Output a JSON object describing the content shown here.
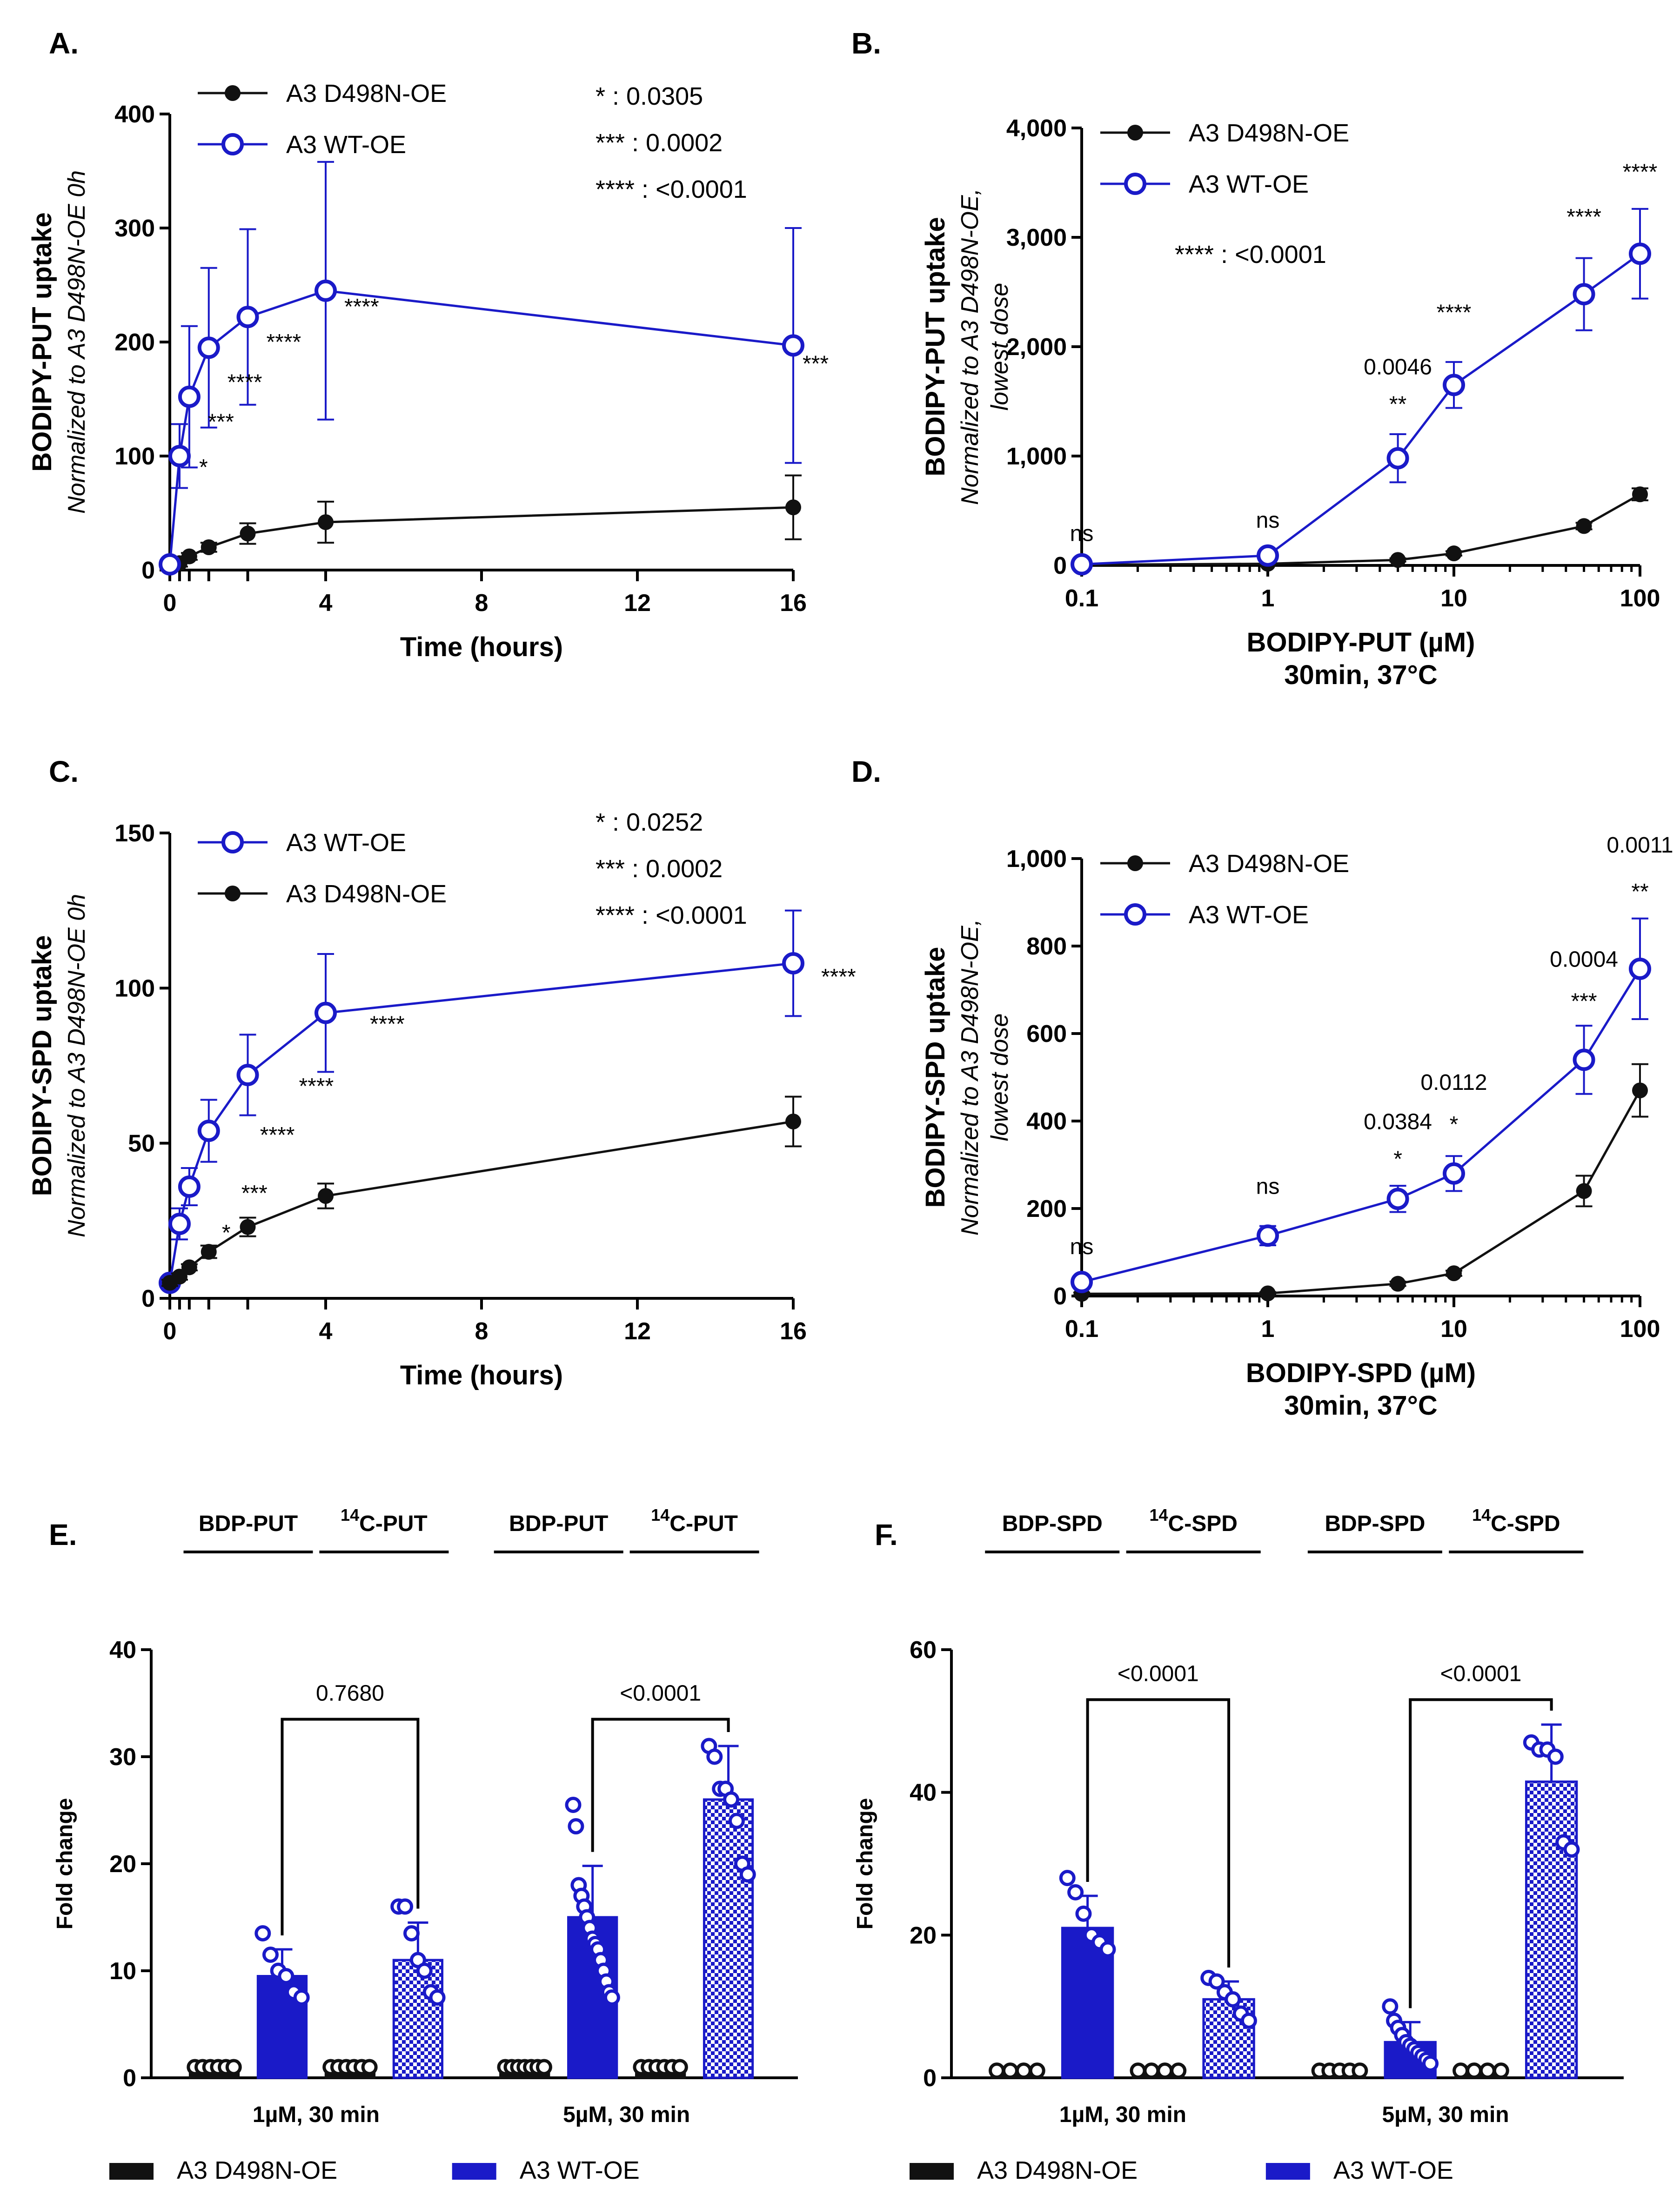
{
  "colors": {
    "wt": "#1a1ac8",
    "mut": "#111111",
    "axis": "#000000"
  },
  "chart_data": [
    {
      "id": "A",
      "label": "A.",
      "type": "line",
      "title": "",
      "xlabel": "Time (hours)",
      "ylabel": "BODIPY-PUT uptake",
      "ylabel_sub": "Normalized to A3 D498N-OE 0h",
      "xlim": [
        0,
        16
      ],
      "ylim": [
        0,
        400
      ],
      "xticks": [
        0,
        4,
        8,
        12,
        16
      ],
      "yticks": [
        0,
        100,
        200,
        300,
        400
      ],
      "minor_xticks": [
        0.25,
        0.5,
        1,
        2
      ],
      "legend": [
        "A3 D498N-OE",
        "A3 WT-OE"
      ],
      "stats": [
        "* : 0.0305",
        "*** : 0.0002",
        "**** : <0.0001"
      ],
      "series": [
        {
          "name": "A3 D498N-OE",
          "color": "mut",
          "marker": "filled",
          "x": [
            0,
            0.25,
            0.5,
            1,
            2,
            4,
            16
          ],
          "y": [
            3,
            6,
            12,
            20,
            32,
            42,
            55
          ],
          "err": [
            2,
            3,
            3,
            4,
            9,
            18,
            28
          ]
        },
        {
          "name": "A3 WT-OE",
          "color": "wt",
          "marker": "open",
          "x": [
            0,
            0.25,
            0.5,
            1,
            2,
            4,
            16
          ],
          "y": [
            5,
            100,
            152,
            195,
            222,
            245,
            197
          ],
          "err": [
            3,
            28,
            62,
            70,
            77,
            113,
            103
          ]
        }
      ],
      "annotations": [
        {
          "x": 0.25,
          "y": 100,
          "text": "*",
          "dx": 42,
          "dy": 40
        },
        {
          "x": 0.5,
          "y": 152,
          "text": "***",
          "dx": 40,
          "dy": 70
        },
        {
          "x": 1,
          "y": 195,
          "text": "****",
          "dx": 40,
          "dy": 90
        },
        {
          "x": 2,
          "y": 222,
          "text": "****",
          "dx": 40,
          "dy": 70
        },
        {
          "x": 4,
          "y": 245,
          "text": "****",
          "dx": 40,
          "dy": 50
        },
        {
          "x": 16,
          "y": 197,
          "text": "***",
          "dx": 20,
          "dy": 55
        }
      ]
    },
    {
      "id": "B",
      "label": "B.",
      "type": "line",
      "xlabel": "BODIPY-PUT (µM)",
      "xlabel2": "30min, 37°C",
      "ylabel": "BODIPY-PUT uptake",
      "ylabel_sub": "Normalized to A3 D498N-OE,",
      "ylabel_sub2": "lowest dose",
      "xscale": "log",
      "xlim": [
        0.1,
        100
      ],
      "ylim": [
        0,
        4000
      ],
      "xticks": [
        0.1,
        1,
        10,
        100
      ],
      "xtick_labels": [
        "0.1",
        "1",
        "10",
        "100"
      ],
      "yticks": [
        0,
        1000,
        2000,
        3000,
        4000
      ],
      "ytick_labels": [
        "0",
        "1,000",
        "2,000",
        "3,000",
        "4,000"
      ],
      "legend": [
        "A3 D498N-OE",
        "A3 WT-OE"
      ],
      "stats": [
        "**** : <0.0001"
      ],
      "series": [
        {
          "name": "A3 D498N-OE",
          "color": "mut",
          "marker": "filled",
          "x": [
            0.1,
            1,
            5,
            10,
            50,
            100
          ],
          "y": [
            5,
            15,
            50,
            110,
            360,
            650
          ],
          "err": [
            5,
            8,
            15,
            20,
            30,
            55
          ]
        },
        {
          "name": "A3 WT-OE",
          "color": "wt",
          "marker": "open",
          "x": [
            0.1,
            1,
            5,
            10,
            50,
            100
          ],
          "y": [
            10,
            90,
            980,
            1650,
            2480,
            2850
          ],
          "err": [
            8,
            20,
            220,
            210,
            330,
            410
          ]
        }
      ],
      "annotations": [
        {
          "x": 0.1,
          "y": 10,
          "text": "ns",
          "dx": 0,
          "dy": -50
        },
        {
          "x": 1,
          "y": 90,
          "text": "ns",
          "dx": 0,
          "dy": -60
        },
        {
          "x": 5,
          "y": 980,
          "text": "0.0046",
          "dx": 0,
          "dy": -180
        },
        {
          "x": 5,
          "y": 980,
          "text": "**",
          "dx": 0,
          "dy": -100
        },
        {
          "x": 10,
          "y": 1650,
          "text": "****",
          "dx": 0,
          "dy": -140
        },
        {
          "x": 50,
          "y": 2480,
          "text": "****",
          "dx": 0,
          "dy": -150
        },
        {
          "x": 100,
          "y": 2850,
          "text": "****",
          "dx": 0,
          "dy": -160
        }
      ]
    },
    {
      "id": "C",
      "label": "C.",
      "type": "line",
      "xlabel": "Time (hours)",
      "ylabel": "BODIPY-SPD uptake",
      "ylabel_sub": "Normalized to A3 D498N-OE 0h",
      "xlim": [
        0,
        16
      ],
      "ylim": [
        0,
        150
      ],
      "xticks": [
        0,
        4,
        8,
        12,
        16
      ],
      "yticks": [
        0,
        50,
        100,
        150
      ],
      "minor_xticks": [
        0.25,
        0.5,
        1,
        2
      ],
      "legend": [
        "A3 WT-OE",
        "A3 D498N-OE"
      ],
      "stats": [
        "* : 0.0252",
        "*** : 0.0002",
        "**** : <0.0001"
      ],
      "series": [
        {
          "name": "A3 WT-OE",
          "color": "wt",
          "marker": "open",
          "x": [
            0,
            0.25,
            0.5,
            1,
            2,
            4,
            16
          ],
          "y": [
            5,
            24,
            36,
            54,
            72,
            92,
            108
          ],
          "err": [
            2,
            5,
            6,
            10,
            13,
            19,
            17
          ]
        },
        {
          "name": "A3 D498N-OE",
          "color": "mut",
          "marker": "filled",
          "x": [
            0,
            0.25,
            0.5,
            1,
            2,
            4,
            16
          ],
          "y": [
            5,
            7,
            10,
            15,
            23,
            33,
            57
          ],
          "err": [
            1,
            1,
            1,
            2,
            3,
            4,
            8
          ]
        }
      ],
      "annotations": [
        {
          "x": 0.5,
          "y": 36,
          "text": "*",
          "dx": 70,
          "dy": 115
        },
        {
          "x": 1,
          "y": 54,
          "text": "***",
          "dx": 70,
          "dy": 150
        },
        {
          "x": 1,
          "y": 54,
          "text": "****",
          "dx": 110,
          "dy": 25
        },
        {
          "x": 2,
          "y": 72,
          "text": "****",
          "dx": 110,
          "dy": 40
        },
        {
          "x": 4,
          "y": 92,
          "text": "****",
          "dx": 95,
          "dy": 40
        },
        {
          "x": 16,
          "y": 108,
          "text": "****",
          "dx": 60,
          "dy": 45
        }
      ]
    },
    {
      "id": "D",
      "label": "D.",
      "type": "line",
      "xlabel": "BODIPY-SPD (µM)",
      "xlabel2": "30min, 37°C",
      "ylabel": "BODIPY-SPD uptake",
      "ylabel_sub": "Normalized to A3 D498N-OE,",
      "ylabel_sub2": "lowest dose",
      "xscale": "log",
      "xlim": [
        0.1,
        100
      ],
      "ylim": [
        0,
        1000
      ],
      "xticks": [
        0.1,
        1,
        10,
        100
      ],
      "xtick_labels": [
        "0.1",
        "1",
        "10",
        "100"
      ],
      "yticks": [
        0,
        200,
        400,
        600,
        800,
        1000
      ],
      "ytick_labels": [
        "0",
        "200",
        "400",
        "600",
        "800",
        "1,000"
      ],
      "legend": [
        "A3 D498N-OE",
        "A3 WT-OE"
      ],
      "series": [
        {
          "name": "A3 D498N-OE",
          "color": "mut",
          "marker": "filled",
          "x": [
            0.1,
            1,
            5,
            10,
            50,
            100
          ],
          "y": [
            5,
            6,
            28,
            52,
            240,
            470
          ],
          "err": [
            3,
            3,
            5,
            6,
            35,
            60
          ]
        },
        {
          "name": "A3 WT-OE",
          "color": "wt",
          "marker": "open",
          "x": [
            0.1,
            1,
            5,
            10,
            50,
            100
          ],
          "y": [
            32,
            138,
            222,
            280,
            540,
            748
          ],
          "err": [
            10,
            22,
            30,
            40,
            78,
            115
          ]
        }
      ],
      "annotations": [
        {
          "x": 0.1,
          "y": 32,
          "text": "ns",
          "dx": 0,
          "dy": -60
        },
        {
          "x": 1,
          "y": 138,
          "text": "ns",
          "dx": 0,
          "dy": -90
        },
        {
          "x": 5,
          "y": 222,
          "text": "0.0384",
          "dx": 0,
          "dy": -150
        },
        {
          "x": 5,
          "y": 222,
          "text": "*",
          "dx": 0,
          "dy": -70
        },
        {
          "x": 10,
          "y": 280,
          "text": "0.0112",
          "dx": 0,
          "dy": -180
        },
        {
          "x": 10,
          "y": 280,
          "text": "*",
          "dx": 0,
          "dy": -90
        },
        {
          "x": 50,
          "y": 540,
          "text": "0.0004",
          "dx": 0,
          "dy": -200
        },
        {
          "x": 50,
          "y": 540,
          "text": "***",
          "dx": 0,
          "dy": -110
        },
        {
          "x": 100,
          "y": 748,
          "text": "0.0011",
          "dx": 0,
          "dy": -250
        },
        {
          "x": 100,
          "y": 748,
          "text": "**",
          "dx": 0,
          "dy": -150
        }
      ]
    },
    {
      "id": "E",
      "label": "E.",
      "type": "bar",
      "ylabel": "Fold change",
      "ylim": [
        0,
        40
      ],
      "yticks": [
        0,
        10,
        20,
        30,
        40
      ],
      "groups": [
        "BDP-PUT",
        "C-PUT",
        "BDP-PUT",
        "C-PUT"
      ],
      "group_sup": [
        "",
        "14",
        "",
        "14"
      ],
      "clusters": [
        "1µM, 30 min",
        "5µM, 30 min"
      ],
      "legend": [
        "A3 D498N-OE",
        "A3 WT-OE"
      ],
      "bars": [
        {
          "pos": 0,
          "series": "mut",
          "pattern": false,
          "mean": 1,
          "err": 0,
          "points": [
            1,
            1,
            1,
            1,
            1,
            1
          ]
        },
        {
          "pos": 1,
          "series": "wt",
          "pattern": false,
          "mean": 9.5,
          "err": 2.5,
          "points": [
            13.5,
            11.5,
            10,
            9.5,
            8,
            7.5
          ]
        },
        {
          "pos": 2,
          "series": "mut",
          "pattern": false,
          "mean": 1,
          "err": 0,
          "points": [
            1,
            1,
            1,
            1,
            1,
            1
          ]
        },
        {
          "pos": 3,
          "series": "wt",
          "pattern": true,
          "mean": 11,
          "err": 3.5,
          "points": [
            16,
            16,
            13.5,
            11,
            10,
            8,
            7.5
          ]
        },
        {
          "pos": 4,
          "series": "mut",
          "pattern": false,
          "mean": 1,
          "err": 0,
          "points": [
            1,
            1,
            1,
            1,
            1,
            1,
            1
          ]
        },
        {
          "pos": 5,
          "series": "wt",
          "pattern": false,
          "mean": 15,
          "err": 4.8,
          "points": [
            25.5,
            23.5,
            18,
            17,
            16,
            15,
            14,
            13,
            12.5,
            12,
            11,
            10,
            9,
            8,
            7.5
          ]
        },
        {
          "pos": 6,
          "series": "mut",
          "pattern": false,
          "mean": 1,
          "err": 0,
          "points": [
            1,
            1,
            1,
            1,
            1,
            1
          ]
        },
        {
          "pos": 7,
          "series": "wt",
          "pattern": true,
          "mean": 26,
          "err": 5,
          "points": [
            31,
            30,
            27,
            27,
            26,
            24,
            20,
            19
          ]
        }
      ],
      "comparisons": [
        {
          "from": 1,
          "to": 3,
          "y": 33.5,
          "text": "0.7680"
        },
        {
          "from": 5,
          "to": 7,
          "y": 33.5,
          "text": "<0.0001"
        }
      ]
    },
    {
      "id": "F",
      "label": "F.",
      "type": "bar",
      "ylabel": "Fold change",
      "ylim": [
        0,
        60
      ],
      "yticks": [
        0,
        20,
        40,
        60
      ],
      "groups": [
        "BDP-SPD",
        "C-SPD",
        "BDP-SPD",
        "C-SPD"
      ],
      "group_sup": [
        "",
        "14",
        "",
        "14"
      ],
      "clusters": [
        "1µM, 30 min",
        "5µM, 30 min"
      ],
      "legend": [
        "A3 D498N-OE",
        "A3 WT-OE"
      ],
      "bars": [
        {
          "pos": 0,
          "series": "mut",
          "pattern": false,
          "mean": 1,
          "err": 0,
          "points": [
            1,
            1,
            1,
            1
          ]
        },
        {
          "pos": 1,
          "series": "wt",
          "pattern": false,
          "mean": 21,
          "err": 4.5,
          "points": [
            28,
            26,
            23,
            20,
            19,
            18
          ]
        },
        {
          "pos": 2,
          "series": "mut",
          "pattern": false,
          "mean": 1,
          "err": 0,
          "points": [
            1,
            1,
            1,
            1
          ]
        },
        {
          "pos": 3,
          "series": "wt",
          "pattern": true,
          "mean": 11,
          "err": 2.5,
          "points": [
            14,
            13.5,
            12,
            11,
            9,
            8
          ]
        },
        {
          "pos": 4,
          "series": "mut",
          "pattern": false,
          "mean": 1,
          "err": 0,
          "points": [
            1,
            1,
            1,
            1,
            1
          ]
        },
        {
          "pos": 5,
          "series": "wt",
          "pattern": false,
          "mean": 5,
          "err": 2.8,
          "points": [
            10,
            8,
            7,
            6,
            5,
            4.5,
            4,
            3.5,
            3,
            2.5,
            2
          ]
        },
        {
          "pos": 6,
          "series": "mut",
          "pattern": false,
          "mean": 1,
          "err": 0,
          "points": [
            1,
            1,
            1,
            1
          ]
        },
        {
          "pos": 7,
          "series": "wt",
          "pattern": true,
          "mean": 41.5,
          "err": 8,
          "points": [
            47,
            46,
            46,
            45,
            33,
            32
          ]
        }
      ],
      "comparisons": [
        {
          "from": 1,
          "to": 3,
          "y": 53,
          "text": "<0.0001"
        },
        {
          "from": 5,
          "to": 7,
          "y": 53,
          "text": "<0.0001"
        }
      ]
    }
  ]
}
